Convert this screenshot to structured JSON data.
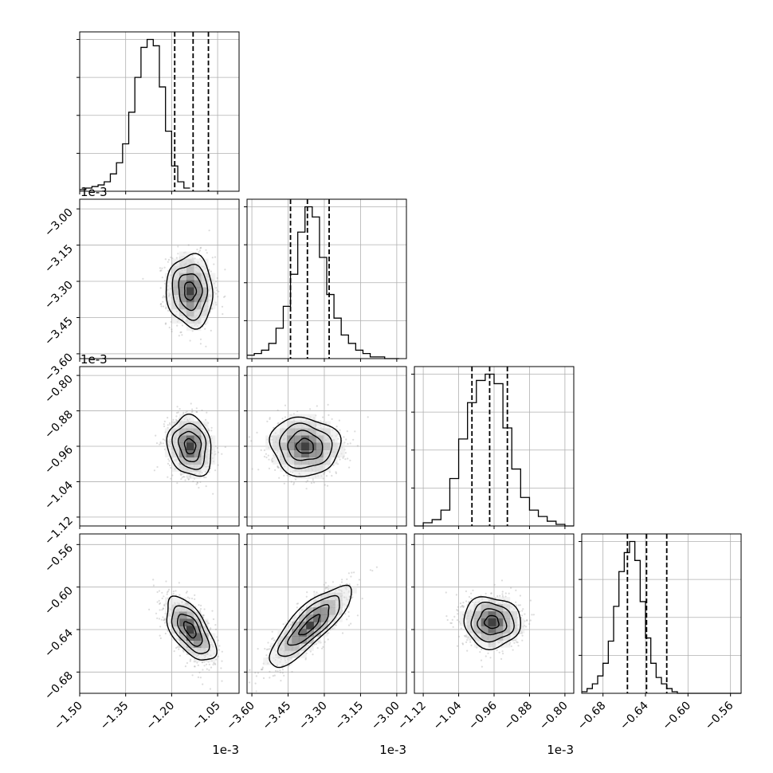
{
  "chart_data": {
    "type": "corner",
    "title": "",
    "axis_exponent_label": "1e-3",
    "grid": true,
    "quantile_lines": [
      0.16,
      0.5,
      0.84
    ],
    "parameters": [
      {
        "index": 0,
        "label": "",
        "range": [
          -1.5,
          -0.98
        ],
        "ticks": [
          -1.5,
          -1.35,
          -1.2,
          -1.05
        ],
        "tick_labels": [
          "−1.50",
          "−1.35",
          "−1.20",
          "−1.05"
        ],
        "quantiles": [
          -1.19,
          -1.13,
          -1.08
        ],
        "histogram": {
          "edges_start": -1.5,
          "bin_width": 0.02,
          "counts": [
            1,
            2,
            3,
            4,
            6,
            11,
            18,
            30,
            50,
            72,
            91,
            96,
            92,
            66,
            38,
            16,
            6,
            2
          ]
        }
      },
      {
        "index": 1,
        "label": "",
        "range": [
          -3.62,
          -2.96
        ],
        "ticks": [
          -3.6,
          -3.45,
          -3.3,
          -3.15,
          -3.0
        ],
        "tick_labels": [
          "−3.60",
          "−3.45",
          "−3.30",
          "−3.15",
          "−3.00"
        ],
        "quantiles": [
          -3.44,
          -3.37,
          -3.28
        ],
        "histogram": {
          "edges_start": -3.62,
          "bin_width": 0.03,
          "counts": [
            2,
            3,
            5,
            9,
            18,
            31,
            50,
            75,
            90,
            84,
            60,
            38,
            24,
            14,
            9,
            5,
            3,
            1,
            1,
            0,
            0
          ]
        }
      },
      {
        "index": 2,
        "label": "",
        "range": [
          -1.14,
          -0.78
        ],
        "ticks": [
          -1.12,
          -1.04,
          -0.96,
          -0.88,
          -0.8
        ],
        "tick_labels": [
          "−1.12",
          "−1.04",
          "−0.96",
          "−0.88",
          "−0.80"
        ],
        "quantiles": [
          -1.01,
          -0.97,
          -0.93
        ],
        "histogram": {
          "edges_start": -1.14,
          "bin_width": 0.02,
          "counts": [
            0,
            2,
            4,
            10,
            30,
            55,
            78,
            92,
            96,
            90,
            62,
            36,
            18,
            10,
            6,
            3,
            1,
            0
          ]
        }
      },
      {
        "index": 3,
        "label": "",
        "range": [
          -0.7,
          -0.55
        ],
        "ticks": [
          -0.68,
          -0.64,
          -0.6,
          -0.56
        ],
        "tick_labels": [
          "−0.68",
          "−0.64",
          "−0.60",
          "−0.56"
        ],
        "quantiles": [
          -0.657,
          -0.639,
          -0.62
        ],
        "histogram": {
          "edges_start": -0.7,
          "bin_width": 0.005,
          "counts": [
            1,
            3,
            6,
            11,
            19,
            33,
            55,
            77,
            89,
            96,
            84,
            58,
            35,
            19,
            10,
            6,
            3,
            1,
            0,
            0,
            0,
            0,
            0,
            0,
            0,
            0,
            0,
            0,
            0,
            0
          ]
        }
      }
    ],
    "pairs": [
      {
        "x": 0,
        "y": 1,
        "center": [
          -1.14,
          -3.34
        ],
        "sigma": [
          0.038,
          0.075
        ],
        "correlation": -0.05
      },
      {
        "x": 0,
        "y": 2,
        "center": [
          -1.14,
          -0.96
        ],
        "sigma": [
          0.036,
          0.034
        ],
        "correlation": -0.15
      },
      {
        "x": 1,
        "y": 2,
        "center": [
          -3.38,
          -0.96
        ],
        "sigma": [
          0.072,
          0.033
        ],
        "correlation": -0.05
      },
      {
        "x": 0,
        "y": 3,
        "center": [
          -1.14,
          -0.64
        ],
        "sigma": [
          0.04,
          0.015
        ],
        "correlation": -0.6
      },
      {
        "x": 1,
        "y": 3,
        "center": [
          -3.36,
          -0.636
        ],
        "sigma": [
          0.085,
          0.019
        ],
        "correlation": 0.82
      },
      {
        "x": 2,
        "y": 3,
        "center": [
          -0.965,
          -0.633
        ],
        "sigma": [
          0.032,
          0.012
        ],
        "correlation": -0.05
      }
    ],
    "contour_levels_sigma": [
      0.5,
      1.0,
      1.5,
      2.0
    ]
  }
}
